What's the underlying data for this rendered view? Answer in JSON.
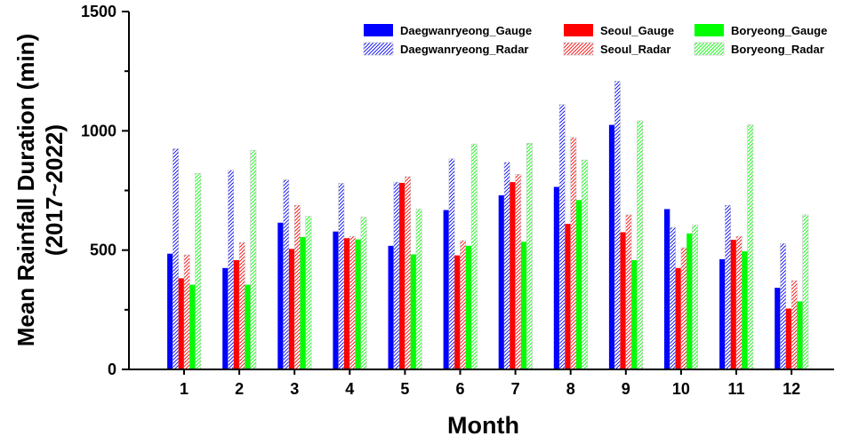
{
  "chart_data": {
    "type": "bar",
    "title": "",
    "xlabel": "Month",
    "ylabel_lines": [
      "Mean Rainfall Duration (min)",
      "(2017~2022)"
    ],
    "ylim": [
      0,
      1500
    ],
    "yticks": [
      0,
      500,
      1000,
      1500
    ],
    "categories": [
      "1",
      "2",
      "3",
      "4",
      "5",
      "6",
      "7",
      "8",
      "9",
      "10",
      "11",
      "12"
    ],
    "legend_position": "top-right",
    "series": [
      {
        "name": "Daegwanryeong_Gauge",
        "color": "#0000ff",
        "pattern": "solid",
        "values": [
          485,
          425,
          615,
          578,
          518,
          668,
          730,
          765,
          1025,
          672,
          462,
          342
        ]
      },
      {
        "name": "Daegwanryeong_Radar",
        "color": "#0000ff",
        "pattern": "hatch",
        "values": [
          925,
          835,
          795,
          780,
          785,
          883,
          868,
          1110,
          1208,
          595,
          688,
          528
        ]
      },
      {
        "name": "Seoul_Gauge",
        "color": "#ff0000",
        "pattern": "solid",
        "values": [
          382,
          458,
          505,
          550,
          782,
          478,
          785,
          610,
          575,
          425,
          543,
          255
        ]
      },
      {
        "name": "Seoul_Radar",
        "color": "#ff0000",
        "pattern": "hatch",
        "values": [
          480,
          532,
          688,
          558,
          808,
          540,
          818,
          972,
          648,
          510,
          558,
          372
        ]
      },
      {
        "name": "Boryeong_Gauge",
        "color": "#00ff00",
        "pattern": "solid",
        "values": [
          355,
          355,
          555,
          545,
          482,
          518,
          535,
          710,
          458,
          570,
          495,
          285
        ]
      },
      {
        "name": "Boryeong_Radar",
        "color": "#00ff00",
        "pattern": "hatch",
        "values": [
          822,
          918,
          642,
          638,
          672,
          945,
          948,
          878,
          1042,
          605,
          1025,
          648
        ]
      }
    ],
    "legend_order": [
      "Daegwanryeong_Gauge",
      "Seoul_Gauge",
      "Boryeong_Gauge",
      "Daegwanryeong_Radar",
      "Seoul_Radar",
      "Boryeong_Radar"
    ]
  }
}
